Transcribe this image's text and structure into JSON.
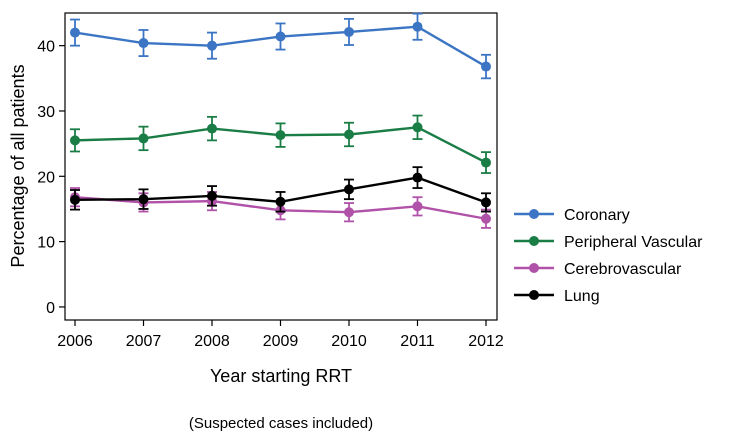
{
  "chart_data": {
    "type": "line",
    "title": "",
    "xlabel": "Year starting RRT",
    "ylabel": "Percentage of all patients",
    "caption": "(Suspected cases included)",
    "x": [
      2006,
      2007,
      2008,
      2009,
      2010,
      2011,
      2012
    ],
    "xlim": [
      2006,
      2012
    ],
    "ylim": [
      -2,
      45
    ],
    "yticks": [
      0,
      10,
      20,
      30,
      40
    ],
    "grid": false,
    "legend_position": "right",
    "series": [
      {
        "name": "Coronary",
        "color": "#3b75c4",
        "values": [
          42.0,
          40.4,
          40.0,
          41.4,
          42.1,
          42.9,
          36.8
        ],
        "lower": [
          40.0,
          38.4,
          38.0,
          39.4,
          40.1,
          40.9,
          35.0
        ],
        "upper": [
          44.0,
          42.4,
          42.0,
          43.4,
          44.1,
          44.9,
          38.6
        ]
      },
      {
        "name": "Peripheral Vascular",
        "color": "#1a7d45",
        "values": [
          25.5,
          25.8,
          27.3,
          26.3,
          26.4,
          27.5,
          22.1
        ],
        "lower": [
          23.8,
          24.0,
          25.5,
          24.5,
          24.6,
          25.7,
          20.5
        ],
        "upper": [
          27.2,
          27.6,
          29.1,
          28.1,
          28.2,
          29.3,
          23.7
        ]
      },
      {
        "name": "Cerebrovascular",
        "color": "#b152a9",
        "values": [
          16.8,
          16.0,
          16.2,
          14.8,
          14.5,
          15.4,
          13.5
        ],
        "lower": [
          15.4,
          14.6,
          14.8,
          13.4,
          13.1,
          14.0,
          12.1
        ],
        "upper": [
          18.2,
          17.4,
          17.6,
          16.2,
          15.9,
          16.8,
          14.9
        ]
      },
      {
        "name": "Lung",
        "color": "#000000",
        "values": [
          16.4,
          16.5,
          17.0,
          16.1,
          18.0,
          19.8,
          16.0
        ],
        "lower": [
          14.9,
          15.0,
          15.5,
          14.6,
          16.5,
          18.2,
          14.6
        ],
        "upper": [
          17.9,
          18.0,
          18.5,
          17.6,
          19.5,
          21.4,
          17.4
        ]
      }
    ]
  }
}
